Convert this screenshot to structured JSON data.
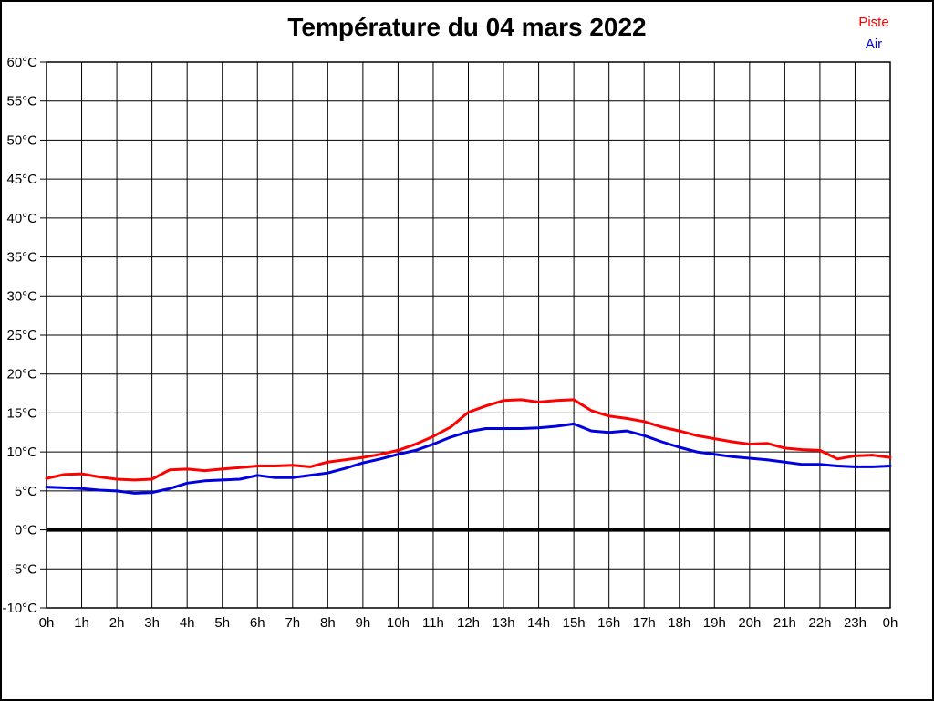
{
  "chart_data": {
    "type": "line",
    "title": "Température du 04 mars 2022",
    "xlabel": "",
    "ylabel": "",
    "xlim": [
      0,
      24
    ],
    "ylim": [
      -10,
      60
    ],
    "grid": true,
    "zero_line_bold": true,
    "legend_position": "top-right",
    "background_color": "#ffffff",
    "grid_color": "#000000",
    "text_color": "#000000",
    "xticks": [
      0,
      1,
      2,
      3,
      4,
      5,
      6,
      7,
      8,
      9,
      10,
      11,
      12,
      13,
      14,
      15,
      16,
      17,
      18,
      19,
      20,
      21,
      22,
      23,
      24
    ],
    "xtick_labels": [
      "0h",
      "1h",
      "2h",
      "3h",
      "4h",
      "5h",
      "6h",
      "7h",
      "8h",
      "9h",
      "10h",
      "11h",
      "12h",
      "13h",
      "14h",
      "15h",
      "16h",
      "17h",
      "18h",
      "19h",
      "20h",
      "21h",
      "22h",
      "23h",
      "0h"
    ],
    "yticks": [
      -10,
      -5,
      0,
      5,
      10,
      15,
      20,
      25,
      30,
      35,
      40,
      45,
      50,
      55,
      60
    ],
    "ytick_labels": [
      "-10°C",
      "-5°C",
      "0°C",
      "5°C",
      "10°C",
      "15°C",
      "20°C",
      "25°C",
      "30°C",
      "35°C",
      "40°C",
      "45°C",
      "50°C",
      "55°C",
      "60°C"
    ],
    "x_hours": [
      0,
      0.5,
      1,
      1.5,
      2,
      2.5,
      3,
      3.5,
      4,
      4.5,
      5,
      5.5,
      6,
      6.5,
      7,
      7.5,
      8,
      8.5,
      9,
      9.5,
      10,
      10.5,
      11,
      11.5,
      12,
      12.5,
      13,
      13.5,
      14,
      14.5,
      15,
      15.5,
      16,
      16.5,
      17,
      17.5,
      18,
      18.5,
      19,
      19.5,
      20,
      20.5,
      21,
      21.5,
      22,
      22.5,
      23,
      23.5,
      24
    ],
    "series": [
      {
        "name": "Piste",
        "color": "#ff0000",
        "values": [
          6.6,
          7.1,
          7.2,
          6.8,
          6.5,
          6.4,
          6.5,
          7.7,
          7.8,
          7.6,
          7.8,
          8.0,
          8.2,
          8.2,
          8.3,
          8.1,
          8.7,
          9.0,
          9.3,
          9.7,
          10.2,
          11.0,
          12.0,
          13.2,
          15.1,
          15.9,
          16.6,
          16.7,
          16.4,
          16.6,
          16.7,
          15.3,
          14.6,
          14.3,
          13.9,
          13.2,
          12.7,
          12.1,
          11.7,
          11.3,
          11.0,
          11.1,
          10.5,
          10.3,
          10.2,
          9.1,
          9.5,
          9.6,
          9.3
        ]
      },
      {
        "name": "Air",
        "color": "#0000e0",
        "values": [
          5.5,
          5.4,
          5.3,
          5.1,
          5.0,
          4.7,
          4.8,
          5.3,
          6.0,
          6.3,
          6.4,
          6.5,
          7.0,
          6.7,
          6.7,
          7.0,
          7.3,
          7.9,
          8.6,
          9.1,
          9.7,
          10.2,
          11.0,
          11.9,
          12.6,
          13.0,
          13.0,
          13.0,
          13.1,
          13.3,
          13.6,
          12.7,
          12.5,
          12.7,
          12.1,
          11.3,
          10.6,
          10.0,
          9.7,
          9.4,
          9.2,
          9.0,
          8.7,
          8.4,
          8.4,
          8.2,
          8.1,
          8.1,
          8.2
        ]
      }
    ]
  }
}
